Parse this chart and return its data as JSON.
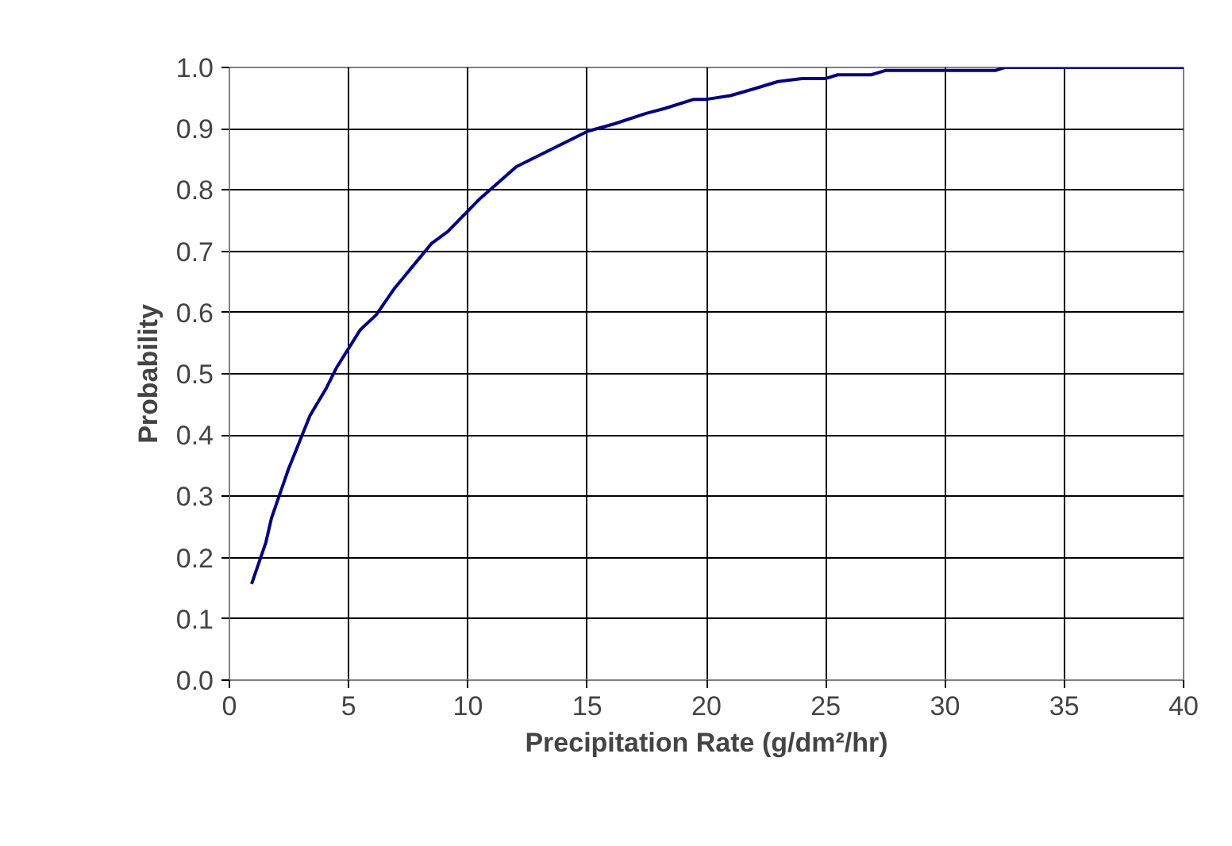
{
  "chart_data": {
    "type": "line",
    "xlabel": "Precipitation Rate (g/dm²/hr)",
    "ylabel": "Probability",
    "x": [
      0.93,
      1.53,
      1.76,
      2.49,
      3.38,
      4.04,
      4.49,
      5.49,
      6.15,
      6.93,
      7.93,
      8.48,
      9.15,
      10.48,
      12.03,
      12.7,
      15.03,
      16.14,
      17.47,
      18.24,
      19.47,
      20.0,
      21.0,
      21.9,
      23.0,
      24.0,
      25.0,
      25.5,
      26.9,
      27.5,
      32.1,
      32.5,
      40
    ],
    "series": [
      {
        "color": "#000080",
        "values": [
          0.157,
          0.225,
          0.264,
          0.346,
          0.432,
          0.475,
          0.51,
          0.572,
          0.596,
          0.64,
          0.687,
          0.713,
          0.732,
          0.785,
          0.838,
          0.851,
          0.896,
          0.908,
          0.925,
          0.933,
          0.948,
          0.948,
          0.954,
          0.964,
          0.977,
          0.982,
          0.982,
          0.988,
          0.988,
          0.995,
          0.995,
          1.0,
          1.0
        ]
      }
    ],
    "xlim": [
      0,
      40
    ],
    "xticks": [
      0,
      5,
      10,
      15,
      20,
      25,
      30,
      35,
      40
    ],
    "ylim": [
      0,
      1
    ],
    "yticks": [
      {
        "value": 0,
        "label": "0.0"
      },
      0.1,
      0.2,
      0.3,
      0.4,
      0.5,
      0.6,
      0.7,
      0.8,
      0.9,
      {
        "value": 1,
        "label": "1.0"
      }
    ],
    "grid": true,
    "marker": "none",
    "line_style": "solid"
  }
}
